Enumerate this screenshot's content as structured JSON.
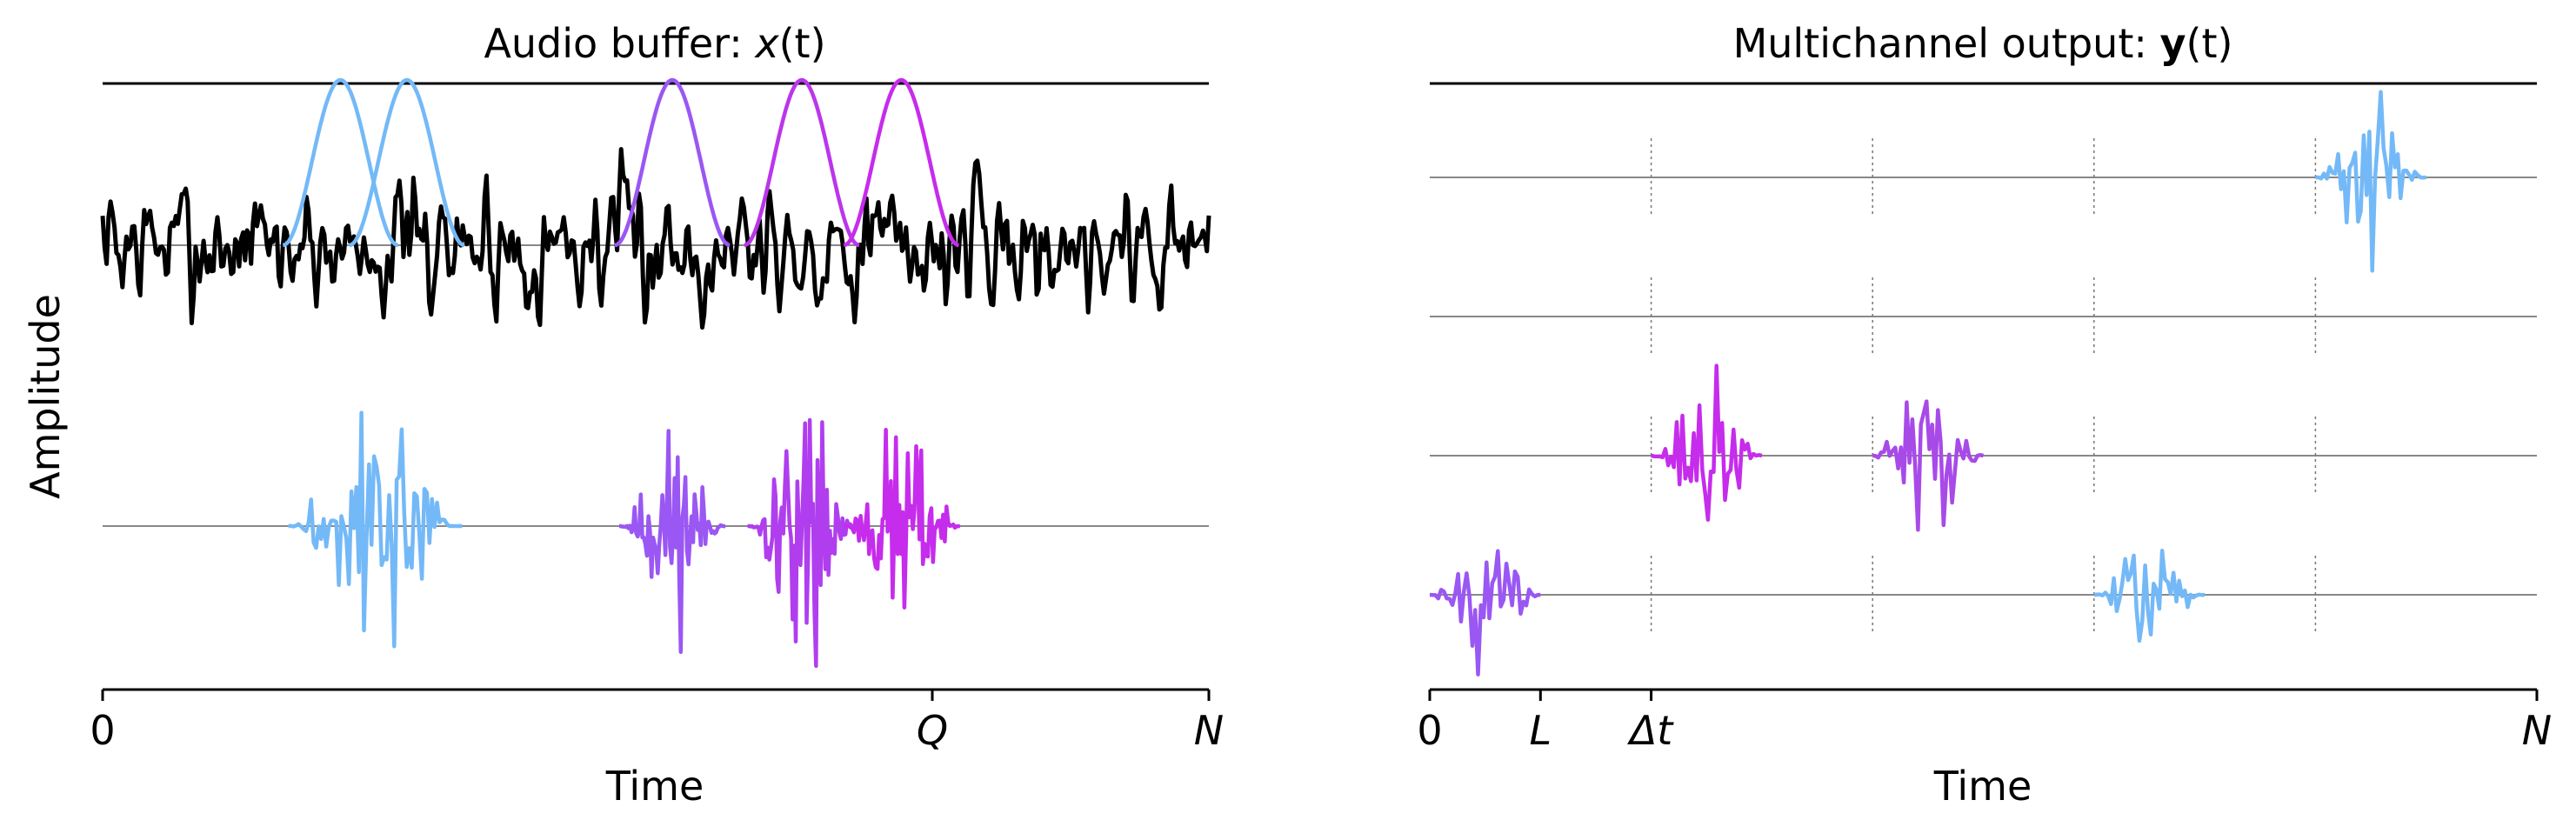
{
  "chart_data": [
    {
      "type": "line",
      "title": {
        "prefix": "Audio buffer: ",
        "var": "x",
        "suffix": "(t)"
      },
      "xlabel": "Time",
      "ylabel": "Amplitude",
      "xlim": [
        0,
        1
      ],
      "xticks": [
        {
          "value": 0,
          "label": "0",
          "italic": false
        },
        {
          "value": 0.75,
          "label": "Q",
          "italic": true
        },
        {
          "value": 1,
          "label": "N",
          "italic": true
        }
      ],
      "series": [
        {
          "role": "buffer",
          "color": "#000000",
          "x_range": [
            0,
            1
          ],
          "seed": 7
        },
        {
          "role": "window",
          "color": "#74b9f7",
          "center": 0.215,
          "half_width": 0.052
        },
        {
          "role": "window",
          "color": "#74b9f7",
          "center": 0.275,
          "half_width": 0.052
        },
        {
          "role": "window",
          "color": "#9a57f3",
          "center": 0.515,
          "half_width": 0.052
        },
        {
          "role": "window",
          "color": "#bb36ea",
          "center": 0.632,
          "half_width": 0.052
        },
        {
          "role": "window",
          "color": "#c62cec",
          "center": 0.722,
          "half_width": 0.052
        }
      ],
      "grains": [
        {
          "color": "#74b9f7",
          "x_range": [
            0.168,
            0.325
          ],
          "seed": 3,
          "peak": 1.0
        },
        {
          "color": "#9a57f3",
          "x_range": [
            0.467,
            0.563
          ],
          "seed": 11,
          "peak": 0.75
        },
        {
          "color": "#b03eee",
          "x_range": [
            0.583,
            0.68
          ],
          "seed": 17,
          "peak": 0.95
        },
        {
          "color": "#c62cec",
          "x_range": [
            0.67,
            0.775
          ],
          "seed": 23,
          "peak": 0.85
        }
      ]
    },
    {
      "type": "line",
      "title": {
        "prefix": "Multichannel output: ",
        "var": "y",
        "suffix": "(t)"
      },
      "xlabel": "Time",
      "xlim": [
        0,
        1
      ],
      "xticks": [
        {
          "value": 0,
          "label": "0",
          "italic": false
        },
        {
          "value": 0.1,
          "label": "L",
          "italic": true
        },
        {
          "value": 0.2,
          "label": "Δt",
          "italic": true
        },
        {
          "value": 1,
          "label": "N",
          "italic": true
        }
      ],
      "channels": 4,
      "frame_markers": [
        0.2,
        0.4,
        0.6,
        0.8
      ],
      "grains": [
        {
          "channel": 1,
          "color": "#74b9f7",
          "x_range": [
            0.8,
            0.9
          ],
          "seed": 31,
          "peak": 1.0
        },
        {
          "channel": 3,
          "color": "#c62cec",
          "x_range": [
            0.2,
            0.3
          ],
          "seed": 37,
          "peak": 0.9
        },
        {
          "channel": 3,
          "color": "#a84ae8",
          "x_range": [
            0.4,
            0.5
          ],
          "seed": 41,
          "peak": 0.9
        },
        {
          "channel": 4,
          "color": "#9a57f3",
          "x_range": [
            0.0,
            0.1
          ],
          "seed": 43,
          "peak": 0.7
        },
        {
          "channel": 4,
          "color": "#74b9f7",
          "x_range": [
            0.6,
            0.7
          ],
          "seed": 47,
          "peak": 0.6
        }
      ]
    }
  ]
}
